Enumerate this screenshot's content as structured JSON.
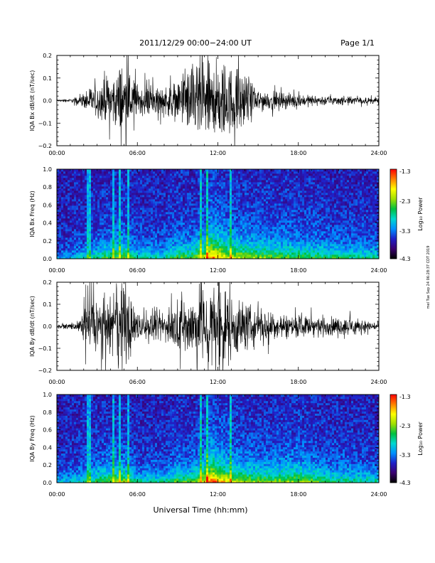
{
  "header": {
    "date_range": "2011/12/29   00:00−24:00 UT",
    "page_label": "Page 1/1"
  },
  "side_note": "mel Tue Sep 24 06:28:37 CDT 2019",
  "xlabel_bottom": "Universal Time (hh:mm)",
  "colorbar": {
    "label": "Log₁₀ Power",
    "range": [
      -4.3,
      -1.3
    ],
    "tick_labels": [
      "-1.3",
      "-2.3",
      "-3.3",
      "-4.3"
    ],
    "colors": [
      "#000000",
      "#3b0070",
      "#2020c8",
      "#0090ff",
      "#00d8d0",
      "#00c040",
      "#a0e000",
      "#ffff00",
      "#ff8000",
      "#ff0000"
    ]
  },
  "chart_data": [
    {
      "type": "line",
      "ylabel": "IQA Bx dB/dt (nT/sec)",
      "xlim": [
        0,
        24
      ],
      "ylim": [
        -0.2,
        0.2
      ],
      "x_tick_labels": [
        "00:00",
        "06:00",
        "12:00",
        "18:00",
        "24:00"
      ],
      "y_tick_labels": [
        "0.2",
        "0.1",
        "0.0",
        "−0.1",
        "−0.2"
      ],
      "series": [
        {
          "x": [
            0,
            1,
            1.8,
            2.2,
            3,
            4,
            4.8,
            5.3,
            6,
            7,
            8,
            9,
            10,
            10.5,
            11,
            11.5,
            12,
            12.5,
            13,
            13.5,
            14,
            15,
            16,
            17,
            18,
            19,
            20,
            21,
            22,
            23,
            24
          ],
          "amplitude": [
            0.005,
            0.008,
            0.02,
            0.06,
            0.08,
            0.1,
            0.18,
            0.15,
            0.08,
            0.06,
            0.07,
            0.09,
            0.17,
            0.2,
            0.2,
            0.2,
            0.2,
            0.18,
            0.16,
            0.15,
            0.12,
            0.06,
            0.04,
            0.04,
            0.03,
            0.025,
            0.025,
            0.02,
            0.02,
            0.015,
            0.015
          ]
        }
      ]
    },
    {
      "type": "heatmap",
      "ylabel": "IQA Bx Freq (Hz)",
      "xlim": [
        0,
        24
      ],
      "ylim": [
        0,
        1.0
      ],
      "x_tick_labels": [
        "00:00",
        "06:00",
        "12:00",
        "18:00",
        "24:00"
      ],
      "y_tick_labels": [
        "1.0",
        "0.8",
        "0.6",
        "0.4",
        "0.2",
        "0.0"
      ],
      "activity": {
        "x": [
          0,
          2,
          3,
          4,
          5,
          6,
          8,
          9,
          10,
          11,
          11.5,
          12,
          13,
          14,
          16,
          18,
          20,
          22,
          24
        ],
        "level": [
          0.2,
          0.35,
          0.45,
          0.55,
          0.6,
          0.4,
          0.4,
          0.55,
          0.55,
          0.7,
          0.95,
          0.85,
          0.7,
          0.65,
          0.6,
          0.55,
          0.5,
          0.45,
          0.4
        ]
      },
      "bright_lines_x": [
        2.2,
        2.4,
        4.1,
        4.6,
        5.2,
        10.7,
        11.2,
        12.9
      ]
    },
    {
      "type": "line",
      "ylabel": "IQA By dB/dt (nT/sec)",
      "xlim": [
        0,
        24
      ],
      "ylim": [
        -0.2,
        0.2
      ],
      "x_tick_labels": [
        "00:00",
        "06:00",
        "12:00",
        "18:00",
        "24:00"
      ],
      "y_tick_labels": [
        "0.2",
        "0.1",
        "0.0",
        "−0.1",
        "−0.2"
      ],
      "series": [
        {
          "x": [
            0,
            1,
            1.8,
            2.2,
            3,
            4,
            4.8,
            5.3,
            6,
            7,
            8,
            9,
            10,
            10.5,
            11,
            11.5,
            12,
            12.5,
            13,
            13.5,
            14,
            15,
            16,
            17,
            18,
            19,
            20,
            21,
            22,
            23,
            24
          ],
          "amplitude": [
            0.008,
            0.012,
            0.03,
            0.12,
            0.15,
            0.12,
            0.2,
            0.18,
            0.07,
            0.07,
            0.08,
            0.1,
            0.15,
            0.18,
            0.2,
            0.2,
            0.2,
            0.18,
            0.15,
            0.14,
            0.12,
            0.08,
            0.07,
            0.06,
            0.05,
            0.05,
            0.05,
            0.04,
            0.04,
            0.03,
            0.02
          ]
        }
      ]
    },
    {
      "type": "heatmap",
      "ylabel": "IQA By Freq (Hz)",
      "xlim": [
        0,
        24
      ],
      "ylim": [
        0,
        1.0
      ],
      "x_tick_labels": [
        "00:00",
        "06:00",
        "12:00",
        "18:00",
        "24:00"
      ],
      "y_tick_labels": [
        "1.0",
        "0.8",
        "0.6",
        "0.4",
        "0.2",
        "0.0"
      ],
      "activity": {
        "x": [
          0,
          2,
          3,
          4,
          5,
          6,
          8,
          9,
          10,
          11,
          11.5,
          12,
          13,
          14,
          16,
          18,
          20,
          22,
          24
        ],
        "level": [
          0.25,
          0.4,
          0.5,
          0.6,
          0.6,
          0.4,
          0.4,
          0.55,
          0.55,
          0.75,
          1.0,
          0.9,
          0.7,
          0.65,
          0.6,
          0.65,
          0.5,
          0.45,
          0.4
        ]
      },
      "bright_lines_x": [
        2.2,
        2.4,
        4.1,
        4.6,
        5.2,
        10.7,
        11.2,
        12.9
      ]
    }
  ]
}
